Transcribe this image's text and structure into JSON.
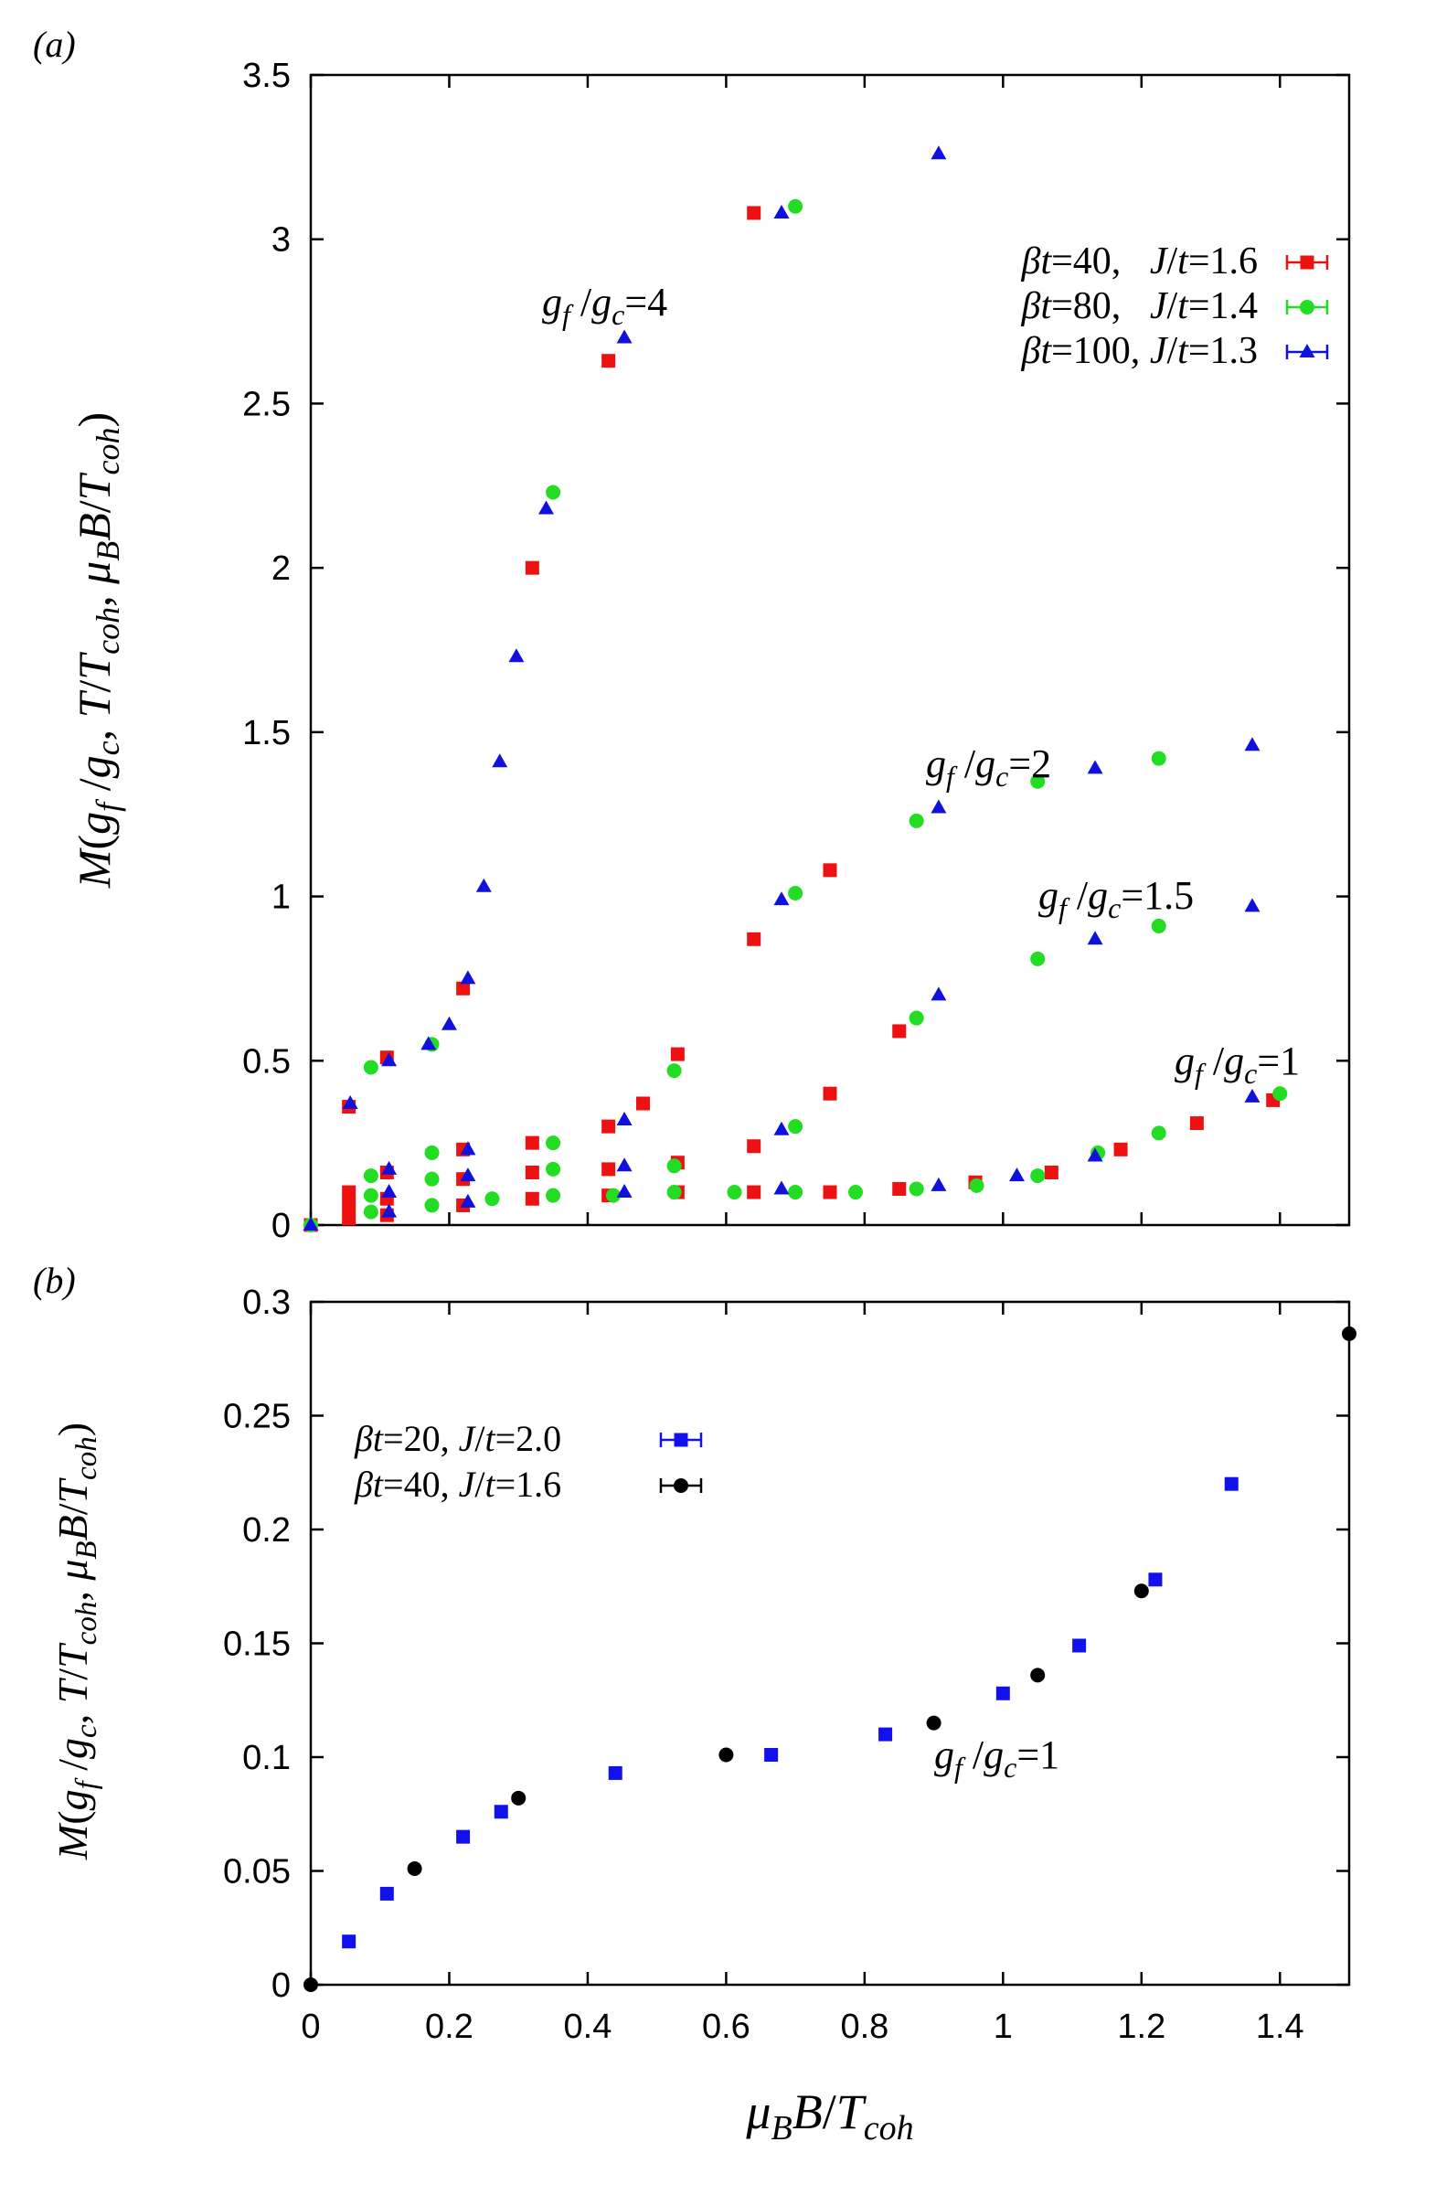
{
  "chart_data": [
    {
      "panel": "(a)",
      "type": "scatter",
      "xlim": [
        0,
        1.5
      ],
      "ylim": [
        0,
        3.5
      ],
      "xticks": [
        0,
        0.2,
        0.4,
        0.6,
        0.8,
        1,
        1.2,
        1.4
      ],
      "yticks": [
        0,
        0.5,
        1,
        1.5,
        2,
        2.5,
        3,
        3.5
      ],
      "ytick_labels": [
        "0",
        "0.5",
        "1",
        "1.5",
        "2",
        "2.5",
        "3",
        "3.5"
      ],
      "ylabel": "M(g_f/g_c, T/T_coh, μ_B B/T_coh)",
      "legend_position": "top-right",
      "series": [
        {
          "name": "βt=40, J/t=1.6",
          "legend_parts": [
            "β",
            "t",
            "=40,   ",
            "J",
            "/",
            "t",
            "=1.6"
          ],
          "color": "#ee1111",
          "marker": "square",
          "points": [
            [
              0,
              0
            ],
            [
              0.055,
              0.02
            ],
            [
              0.055,
              0.06
            ],
            [
              0.055,
              0.1
            ],
            [
              0.055,
              0.36
            ],
            [
              0.11,
              0.03
            ],
            [
              0.11,
              0.08
            ],
            [
              0.11,
              0.16
            ],
            [
              0.11,
              0.51
            ],
            [
              0.22,
              0.06
            ],
            [
              0.22,
              0.14
            ],
            [
              0.22,
              0.23
            ],
            [
              0.22,
              0.72
            ],
            [
              0.32,
              0.08
            ],
            [
              0.32,
              0.16
            ],
            [
              0.32,
              0.25
            ],
            [
              0.32,
              2.0
            ],
            [
              0.43,
              0.09
            ],
            [
              0.43,
              0.17
            ],
            [
              0.43,
              0.3
            ],
            [
              0.43,
              2.63
            ],
            [
              0.48,
              0.37
            ],
            [
              0.53,
              0.1
            ],
            [
              0.53,
              0.19
            ],
            [
              0.53,
              0.52
            ],
            [
              0.64,
              0.1
            ],
            [
              0.64,
              0.24
            ],
            [
              0.64,
              0.87
            ],
            [
              0.64,
              3.08
            ],
            [
              0.75,
              0.1
            ],
            [
              0.75,
              0.4
            ],
            [
              0.75,
              1.08
            ],
            [
              0.85,
              0.11
            ],
            [
              0.85,
              0.59
            ],
            [
              0.96,
              0.13
            ],
            [
              1.07,
              0.16
            ],
            [
              1.17,
              0.23
            ],
            [
              1.28,
              0.31
            ],
            [
              1.39,
              0.38
            ]
          ]
        },
        {
          "name": "βt=80, J/t=1.4",
          "legend_parts": [
            "β",
            "t",
            "=80,   ",
            "J",
            "/",
            "t",
            "=1.4"
          ],
          "color": "#22dd22",
          "marker": "circle",
          "points": [
            [
              0,
              0
            ],
            [
              0.087,
              0.04
            ],
            [
              0.087,
              0.09
            ],
            [
              0.087,
              0.15
            ],
            [
              0.087,
              0.48
            ],
            [
              0.175,
              0.06
            ],
            [
              0.175,
              0.14
            ],
            [
              0.175,
              0.22
            ],
            [
              0.175,
              0.55
            ],
            [
              0.262,
              0.08
            ],
            [
              0.35,
              0.09
            ],
            [
              0.35,
              0.17
            ],
            [
              0.35,
              0.25
            ],
            [
              0.35,
              2.23
            ],
            [
              0.437,
              0.09
            ],
            [
              0.525,
              0.1
            ],
            [
              0.525,
              0.18
            ],
            [
              0.525,
              0.47
            ],
            [
              0.612,
              0.1
            ],
            [
              0.7,
              0.1
            ],
            [
              0.7,
              0.3
            ],
            [
              0.7,
              1.01
            ],
            [
              0.7,
              3.1
            ],
            [
              0.787,
              0.1
            ],
            [
              0.875,
              0.11
            ],
            [
              0.875,
              0.63
            ],
            [
              0.875,
              1.23
            ],
            [
              0.962,
              0.12
            ],
            [
              1.05,
              0.15
            ],
            [
              1.05,
              0.81
            ],
            [
              1.05,
              1.35
            ],
            [
              1.137,
              0.22
            ],
            [
              1.225,
              0.28
            ],
            [
              1.225,
              0.91
            ],
            [
              1.225,
              1.42
            ],
            [
              1.4,
              0.4
            ]
          ]
        },
        {
          "name": "βt=100, J/t=1.3",
          "legend_parts": [
            "β",
            "t",
            "=100, ",
            "J",
            "/",
            "t",
            "=1.3"
          ],
          "color": "#1111dd",
          "marker": "triangle",
          "points": [
            [
              0,
              0
            ],
            [
              0.057,
              0.37
            ],
            [
              0.113,
              0.04
            ],
            [
              0.113,
              0.1
            ],
            [
              0.113,
              0.17
            ],
            [
              0.113,
              0.5
            ],
            [
              0.17,
              0.55
            ],
            [
              0.2,
              0.61
            ],
            [
              0.227,
              0.07
            ],
            [
              0.227,
              0.15
            ],
            [
              0.227,
              0.23
            ],
            [
              0.227,
              0.75
            ],
            [
              0.25,
              1.03
            ],
            [
              0.273,
              1.41
            ],
            [
              0.297,
              1.73
            ],
            [
              0.34,
              2.18
            ],
            [
              0.453,
              0.1
            ],
            [
              0.453,
              0.18
            ],
            [
              0.453,
              0.32
            ],
            [
              0.453,
              2.7
            ],
            [
              0.68,
              0.11
            ],
            [
              0.68,
              0.29
            ],
            [
              0.68,
              0.99
            ],
            [
              0.68,
              3.08
            ],
            [
              0.907,
              0.12
            ],
            [
              0.907,
              0.7
            ],
            [
              0.907,
              1.27
            ],
            [
              0.907,
              3.26
            ],
            [
              1.02,
              0.15
            ],
            [
              1.133,
              0.21
            ],
            [
              1.133,
              0.87
            ],
            [
              1.133,
              1.39
            ],
            [
              1.36,
              0.39
            ],
            [
              1.36,
              0.97
            ],
            [
              1.36,
              1.46
            ]
          ]
        }
      ],
      "annotations": [
        {
          "value": "=4",
          "x": 0.33,
          "y": 2.77
        },
        {
          "value": "=2",
          "x": 0.89,
          "y": 1.39
        },
        {
          "value": "=1.5",
          "x": 1.05,
          "y": 1.0
        },
        {
          "value": "=1",
          "x": 1.25,
          "y": 0.47
        }
      ]
    },
    {
      "panel": "(b)",
      "type": "scatter",
      "xlim": [
        0,
        1.5
      ],
      "ylim": [
        0,
        0.3
      ],
      "xticks": [
        0,
        0.2,
        0.4,
        0.6,
        0.8,
        1,
        1.2,
        1.4
      ],
      "xtick_labels": [
        "0",
        "0.2",
        "0.4",
        "0.6",
        "0.8",
        "1",
        "1.2",
        "1.4"
      ],
      "yticks": [
        0,
        0.05,
        0.1,
        0.15,
        0.2,
        0.25,
        0.3
      ],
      "ytick_labels": [
        "0",
        "0.05",
        "0.1",
        "0.15",
        "0.2",
        "0.25",
        "0.3"
      ],
      "xlabel": "μ_B B/T_coh",
      "ylabel": "M(g_f/g_c, T/T_coh, μ_B B/T_coh)",
      "legend_position": "top-left",
      "series": [
        {
          "name": "βt=20, J/t=2.0",
          "legend_parts": [
            "β",
            "t",
            "=20, ",
            "J",
            "/",
            "t",
            "=2.0"
          ],
          "color": "#1111ee",
          "marker": "square",
          "points": [
            [
              0.055,
              0.019
            ],
            [
              0.11,
              0.04
            ],
            [
              0.22,
              0.065
            ],
            [
              0.275,
              0.076
            ],
            [
              0.44,
              0.093
            ],
            [
              0.665,
              0.101
            ],
            [
              0.83,
              0.11
            ],
            [
              1.0,
              0.128
            ],
            [
              1.11,
              0.149
            ],
            [
              1.22,
              0.178
            ],
            [
              1.33,
              0.22
            ]
          ]
        },
        {
          "name": "βt=40, J/t=1.6",
          "legend_parts": [
            "β",
            "t",
            "=40, ",
            "J",
            "/",
            "t",
            "=1.6"
          ],
          "color": "#000000",
          "marker": "circle",
          "points": [
            [
              0,
              0
            ],
            [
              0.15,
              0.051
            ],
            [
              0.3,
              0.082
            ],
            [
              0.6,
              0.101
            ],
            [
              0.9,
              0.115
            ],
            [
              1.05,
              0.136
            ],
            [
              1.2,
              0.173
            ],
            [
              1.5,
              0.286
            ]
          ]
        }
      ],
      "annotations": [
        {
          "value": "=1",
          "x": 0.9,
          "y": 0.1
        }
      ]
    }
  ]
}
